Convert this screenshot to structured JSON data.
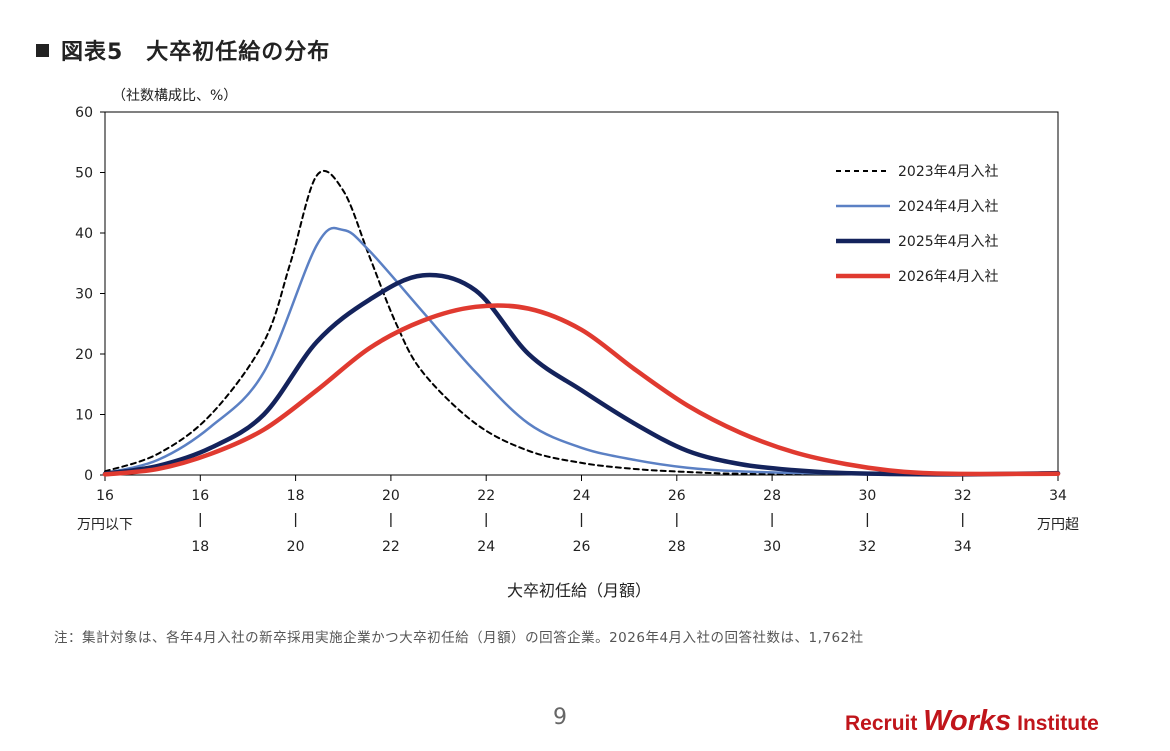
{
  "header": {
    "title": "図表5　大卒初任給の分布"
  },
  "note": "注：集計対象は、各年4月入社の新卒採用実施企業かつ大卒初任給（月額）の回答企業。2026年4月入社の回答社数は、1,762社",
  "page_number": "9",
  "logo": {
    "part1": "Recruit ",
    "part2": "Works",
    "part3": " Institute",
    "color": "#c0151b"
  },
  "chart_data": {
    "type": "line",
    "title": "",
    "ylabel": "（社数構成比、%）",
    "xlabel": "大卒初任給（月額）",
    "ylim": [
      0,
      60
    ],
    "yticks": [
      "0",
      "10",
      "20",
      "30",
      "40",
      "50",
      "60"
    ],
    "xlim": [
      16,
      34
    ],
    "xticks_top": [
      "16",
      "16",
      "18",
      "20",
      "22",
      "24",
      "26",
      "28",
      "30",
      "32",
      "34"
    ],
    "xticks_bottom": [
      "万円以下",
      "18",
      "20",
      "22",
      "24",
      "26",
      "28",
      "30",
      "32",
      "34",
      "万円超"
    ],
    "grid": false,
    "legend_position": "top-right",
    "series": [
      {
        "name": "2023年4月入社",
        "color": "#000000",
        "dash": true,
        "width": 2,
        "x": [
          16,
          17,
          18,
          19,
          19.5,
          20,
          20.5,
          21,
          21.5,
          22,
          23,
          24,
          25,
          26,
          27,
          28,
          30,
          32,
          34
        ],
        "y": [
          0.6,
          3.5,
          10,
          22,
          35,
          49.5,
          47,
          36,
          25,
          17,
          8.5,
          4,
          2,
          1,
          0.5,
          0.2,
          0.1,
          0.05,
          0.3
        ]
      },
      {
        "name": "2024年4月入社",
        "color": "#5b80c4",
        "dash": false,
        "width": 2.5,
        "x": [
          16,
          17,
          18,
          19,
          20,
          20.5,
          21,
          22,
          23,
          24,
          25,
          26,
          27,
          28,
          30,
          32,
          34
        ],
        "y": [
          0.3,
          2.5,
          8,
          17,
          38,
          40.5,
          37,
          27,
          17,
          8.5,
          4.5,
          2.5,
          1.2,
          0.6,
          0.2,
          0.1,
          0.3
        ]
      },
      {
        "name": "2025年4月入社",
        "color": "#14235c",
        "dash": false,
        "width": 4.5,
        "x": [
          16,
          17,
          18,
          19,
          20,
          21,
          22,
          23,
          24,
          25,
          26,
          27,
          28,
          29,
          30,
          32,
          34
        ],
        "y": [
          0.2,
          1.5,
          4.5,
          10,
          22,
          29,
          33,
          30.5,
          20,
          14,
          8.5,
          4,
          1.8,
          0.8,
          0.3,
          0.1,
          0.3
        ]
      },
      {
        "name": "2026年4月入社",
        "color": "#e03a30",
        "dash": false,
        "width": 4.5,
        "x": [
          16,
          17,
          18,
          19,
          20,
          21,
          22,
          23,
          24,
          25,
          26,
          27,
          28,
          29,
          30,
          31,
          32,
          34
        ],
        "y": [
          0.1,
          1,
          3.5,
          7.5,
          14,
          21,
          25.5,
          27.8,
          27.5,
          24,
          17.5,
          11.5,
          7,
          3.8,
          1.8,
          0.6,
          0.2,
          0.2
        ]
      }
    ]
  }
}
